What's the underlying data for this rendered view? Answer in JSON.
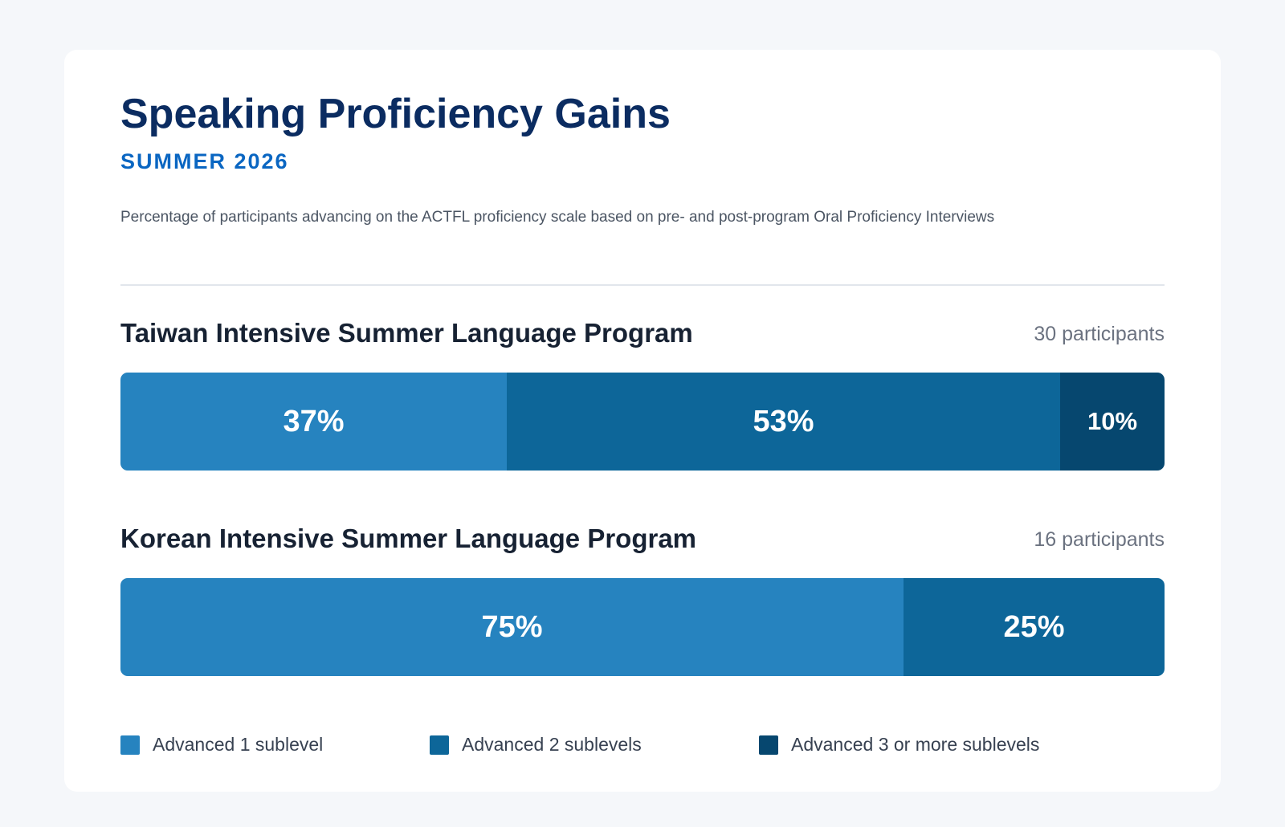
{
  "header": {
    "title": "Speaking Proficiency Gains",
    "subtitle": "SUMMER 2026",
    "description": "Percentage of participants advancing on the ACTFL proficiency scale based on pre- and post-program Oral Proficiency Interviews"
  },
  "colors": {
    "level1": "#2683bf",
    "level2": "#0d6699",
    "level3": "#06476f"
  },
  "chart_data": {
    "type": "bar",
    "orientation": "horizontal",
    "stacked": true,
    "categories": [
      "Taiwan Intensive Summer Language Program",
      "Korean Intensive Summer Language Program"
    ],
    "participant_labels": [
      "30 participants",
      "16 participants"
    ],
    "series": [
      {
        "name": "Advanced 1 sublevel",
        "values": [
          37,
          75
        ],
        "color": "#2683bf"
      },
      {
        "name": "Advanced 2 sublevels",
        "values": [
          53,
          25
        ],
        "color": "#0d6699"
      },
      {
        "name": "Advanced 3 or more sublevels",
        "values": [
          10,
          0
        ],
        "color": "#06476f"
      }
    ],
    "value_labels": [
      [
        "37%",
        "53%",
        "10%"
      ],
      [
        "75%",
        "25%"
      ]
    ],
    "legend_position": "bottom"
  }
}
